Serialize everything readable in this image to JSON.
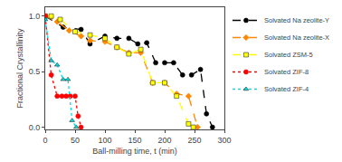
{
  "chart_data": {
    "type": "line",
    "xlabel": "Ball-milling time, t (min)",
    "ylabel": "Fractional Crystallinity",
    "xlim": [
      0,
      300
    ],
    "ylim": [
      -0.02,
      1.08
    ],
    "xticks": [
      0,
      50,
      100,
      150,
      200,
      250,
      300
    ],
    "yticks": [
      {
        "value": 0,
        "label": "0.0"
      },
      0.5,
      {
        "value": 1,
        "label": "1.0"
      }
    ],
    "grid": false,
    "legend": "upper right",
    "series": [
      {
        "name": "Solvated Na zeolite-Y",
        "color": "#000000",
        "marker": "circle",
        "line_style": "dashed",
        "x": [
          0,
          30,
          60,
          75,
          100,
          120,
          140,
          155,
          170,
          185,
          200,
          215,
          230,
          245,
          260,
          270,
          280
        ],
        "values": [
          1.0,
          0.9,
          0.88,
          0.75,
          0.82,
          0.8,
          0.8,
          0.75,
          0.76,
          0.58,
          0.58,
          0.58,
          0.47,
          0.47,
          0.52,
          0.12,
          0.0
        ]
      },
      {
        "name": "Solvated Na zeolite-X",
        "color": "#FF8800",
        "marker": "diamond",
        "line_style": "dashed",
        "x": [
          0,
          20,
          40,
          60,
          75,
          100,
          120,
          140,
          160,
          180,
          200,
          220,
          240,
          255
        ],
        "values": [
          1.0,
          0.95,
          0.87,
          0.82,
          0.78,
          0.77,
          0.72,
          0.67,
          0.67,
          0.4,
          0.4,
          0.3,
          0.28,
          0.0
        ]
      },
      {
        "name": "Solvated ZSM-5",
        "color": "#FFFF00",
        "marker": "square",
        "line_style": "dashed",
        "x": [
          0,
          10,
          25,
          50,
          75,
          100,
          120,
          140,
          160,
          180,
          200,
          220,
          240,
          248
        ],
        "values": [
          1.0,
          1.0,
          0.97,
          0.86,
          0.83,
          0.8,
          0.72,
          0.66,
          0.7,
          0.4,
          0.4,
          0.28,
          0.03,
          0.0
        ]
      },
      {
        "name": "Solvated ZIF-8",
        "color": "#FF0000",
        "marker": "circle",
        "line_style": "dotted",
        "x": [
          0,
          10,
          20,
          28,
          35,
          42,
          50,
          55,
          60
        ],
        "values": [
          1.0,
          0.47,
          0.28,
          0.28,
          0.28,
          0.28,
          0.28,
          0.1,
          0.0
        ]
      },
      {
        "name": "Solvated ZIF-4",
        "color": "#00DDDD",
        "marker": "triangle-up",
        "line_style": "dotted",
        "x": [
          0,
          10,
          20,
          30,
          38,
          45,
          52
        ],
        "values": [
          0.97,
          0.6,
          0.56,
          0.43,
          0.43,
          0.06,
          0.0
        ]
      }
    ]
  }
}
